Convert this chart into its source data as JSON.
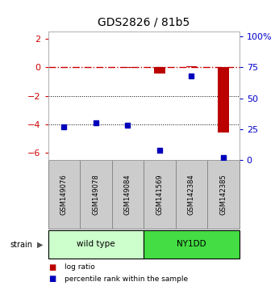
{
  "title": "GDS2826 / 81b5",
  "samples": [
    "GSM149076",
    "GSM149078",
    "GSM149084",
    "GSM141569",
    "GSM142384",
    "GSM142385"
  ],
  "groups": [
    {
      "name": "wild type",
      "color": "#ccffcc",
      "samples": [
        0,
        1,
        2
      ]
    },
    {
      "name": "NY1DD",
      "color": "#44dd44",
      "samples": [
        3,
        4,
        5
      ]
    }
  ],
  "log_ratio": [
    0.02,
    0.02,
    -0.05,
    -0.45,
    0.08,
    -4.55
  ],
  "percentile_rank": [
    27,
    30,
    28,
    8,
    68,
    2
  ],
  "ylim_left": [
    -6.5,
    2.5
  ],
  "ylim_right": [
    0,
    104
  ],
  "yticks_left": [
    2,
    0,
    -2,
    -4,
    -6
  ],
  "yticks_right": [
    0,
    25,
    50,
    75,
    100
  ],
  "ytick_labels_right": [
    "0",
    "25",
    "50",
    "75",
    "100%"
  ],
  "hlines_dotted": [
    -2,
    -4
  ],
  "hline_dashdot": 0,
  "bar_color": "#bb0000",
  "dot_color": "#0000bb",
  "title_fontsize": 10,
  "tick_color_left": "#cc0000",
  "tick_color_right": "#0000cc",
  "legend_items": [
    {
      "label": "log ratio",
      "color": "#bb0000"
    },
    {
      "label": "percentile rank within the sample",
      "color": "#0000bb"
    }
  ],
  "sample_box_color": "#cccccc",
  "sample_box_edge": "#888888",
  "bar_width": 0.35
}
